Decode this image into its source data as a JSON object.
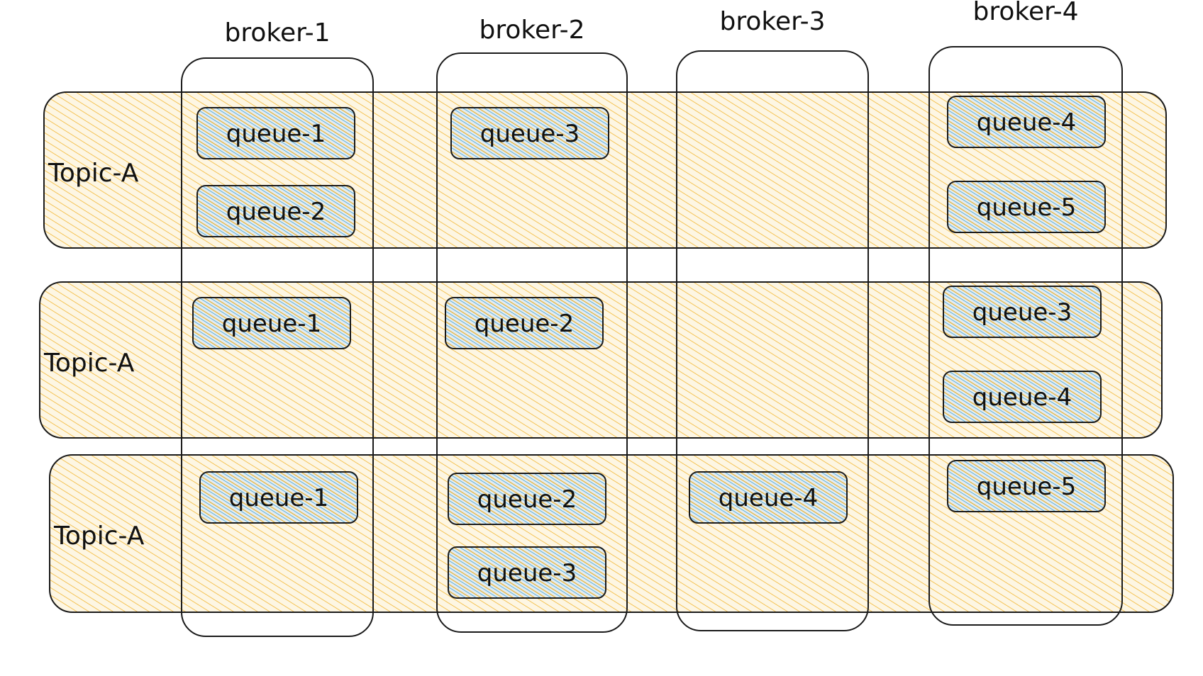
{
  "colors": {
    "topic_fill": "#fdf6e3",
    "topic_hatch": "#f2b632",
    "queue_fill": "#e4ecf1",
    "queue_hatch_blue": "#2f9fd8",
    "queue_hatch_yellow": "#e8b230",
    "stroke": "#1a1a1a"
  },
  "brokers": [
    {
      "label": "broker-1"
    },
    {
      "label": "broker-2"
    },
    {
      "label": "broker-3"
    },
    {
      "label": "broker-4"
    }
  ],
  "topics": [
    {
      "label": "Topic-A",
      "queues": [
        {
          "broker": 0,
          "slot": 0,
          "label": "queue-1"
        },
        {
          "broker": 0,
          "slot": 1,
          "label": "queue-2"
        },
        {
          "broker": 1,
          "slot": 0,
          "label": "queue-3"
        },
        {
          "broker": 3,
          "slot": 0,
          "label": "queue-4"
        },
        {
          "broker": 3,
          "slot": 1,
          "label": "queue-5"
        }
      ]
    },
    {
      "label": "Topic-A",
      "queues": [
        {
          "broker": 0,
          "slot": 0,
          "label": "queue-1"
        },
        {
          "broker": 1,
          "slot": 0,
          "label": "queue-2"
        },
        {
          "broker": 3,
          "slot": 0,
          "label": "queue-3"
        },
        {
          "broker": 3,
          "slot": 1,
          "label": "queue-4"
        }
      ]
    },
    {
      "label": "Topic-A",
      "queues": [
        {
          "broker": 0,
          "slot": 0,
          "label": "queue-1"
        },
        {
          "broker": 1,
          "slot": 0,
          "label": "queue-2"
        },
        {
          "broker": 1,
          "slot": 1,
          "label": "queue-3"
        },
        {
          "broker": 2,
          "slot": 0,
          "label": "queue-4"
        },
        {
          "broker": 3,
          "slot": 0,
          "label": "queue-5"
        }
      ]
    }
  ]
}
